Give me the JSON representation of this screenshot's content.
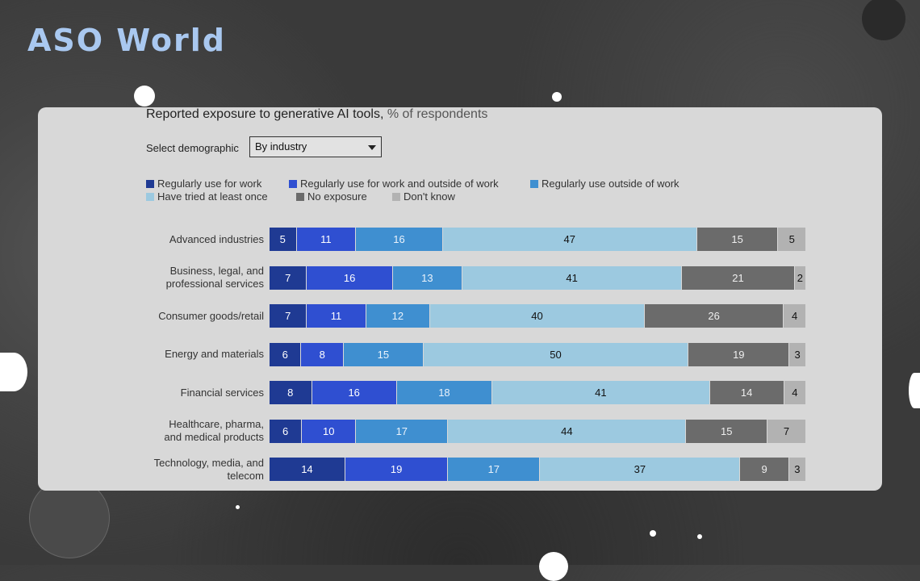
{
  "logo": {
    "text": "ASO World"
  },
  "chart_data": {
    "type": "bar",
    "orientation": "horizontal-stacked-100",
    "title": "Reported exposure to generative AI tools,",
    "subtitle": "% of respondents",
    "control": {
      "label": "Select demographic",
      "selected": "By industry"
    },
    "legend_position": "top",
    "categories": [
      [
        "Advanced industries"
      ],
      [
        "Business, legal, and",
        "professional services"
      ],
      [
        "Consumer goods/retail"
      ],
      [
        "Energy and materials"
      ],
      [
        "Financial services"
      ],
      [
        "Healthcare, pharma,",
        "and medical products"
      ],
      [
        "Technology, media, and",
        "telecom"
      ]
    ],
    "series": [
      {
        "name": "Regularly use for work",
        "color": "#1f3a93",
        "text_color": "#ffffff",
        "values": [
          5,
          7,
          7,
          6,
          8,
          6,
          14
        ]
      },
      {
        "name": "Regularly use for work and outside of work",
        "color": "#2f4fd1",
        "text_color": "#ffffff",
        "values": [
          11,
          16,
          11,
          8,
          16,
          10,
          19
        ]
      },
      {
        "name": "Regularly use outside of work",
        "color": "#3f8fd0",
        "text_color": "#eaf2fb",
        "values": [
          16,
          13,
          12,
          15,
          18,
          17,
          17
        ]
      },
      {
        "name": "Have tried at least once",
        "color": "#9cc9e0",
        "text_color": "#111111",
        "values": [
          47,
          41,
          40,
          50,
          41,
          44,
          37
        ]
      },
      {
        "name": "No exposure",
        "color": "#6b6b6b",
        "text_color": "#eeeeee",
        "values": [
          15,
          21,
          26,
          19,
          14,
          15,
          9
        ]
      },
      {
        "name": "Don't know",
        "color": "#b2b2b2",
        "text_color": "#111111",
        "values": [
          5,
          2,
          4,
          3,
          4,
          7,
          3
        ]
      }
    ]
  }
}
